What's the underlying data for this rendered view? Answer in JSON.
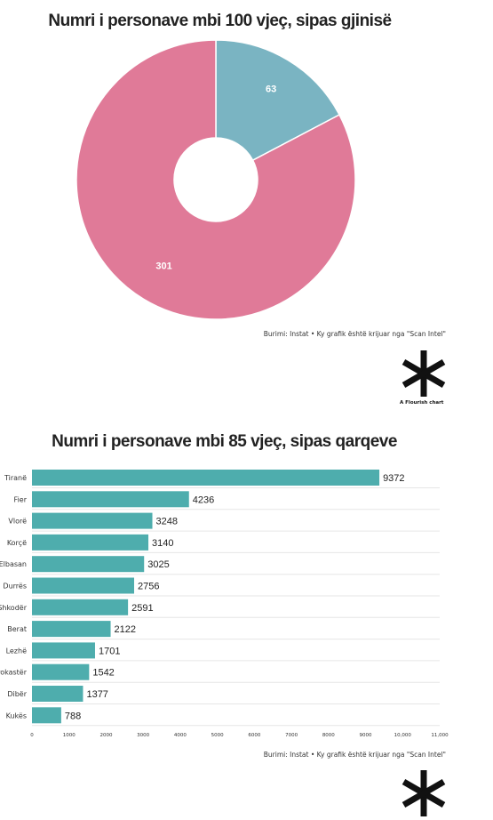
{
  "chart_data": [
    {
      "type": "pie",
      "title": "Numri i personave mbi 100 vjeç, sipas gjinisë",
      "values": [
        63,
        301
      ],
      "colors": [
        "#7ab4c2",
        "#e07a98"
      ],
      "donut": true,
      "source": "Burimi: Instat • Ky grafik është krijuar nga \"Scan Intel\"",
      "brand": "A Flourish chart"
    },
    {
      "type": "bar",
      "orientation": "horizontal",
      "title": "Numri i personave mbi 85 vjeç, sipas qarqeve",
      "categories": [
        "Tiranë",
        "Fier",
        "Vlorë",
        "Korçë",
        "Elbasan",
        "Durrës",
        "Shkodër",
        "Berat",
        "Lezhë",
        "Gjirokastër",
        "Dibër",
        "Kukës"
      ],
      "values": [
        9372,
        4236,
        3248,
        3140,
        3025,
        2756,
        2591,
        2122,
        1701,
        1542,
        1377,
        788
      ],
      "xlim": [
        0,
        11000
      ],
      "xticks": [
        "0",
        "1000",
        "2000",
        "3000",
        "4000",
        "5000",
        "6000",
        "7000",
        "8000",
        "9000",
        "10,000",
        "11,000"
      ],
      "bar_color": "#4eadad",
      "source": "Burimi: Instat • Ky grafik është krijuar nga \"Scan Intel\""
    }
  ]
}
